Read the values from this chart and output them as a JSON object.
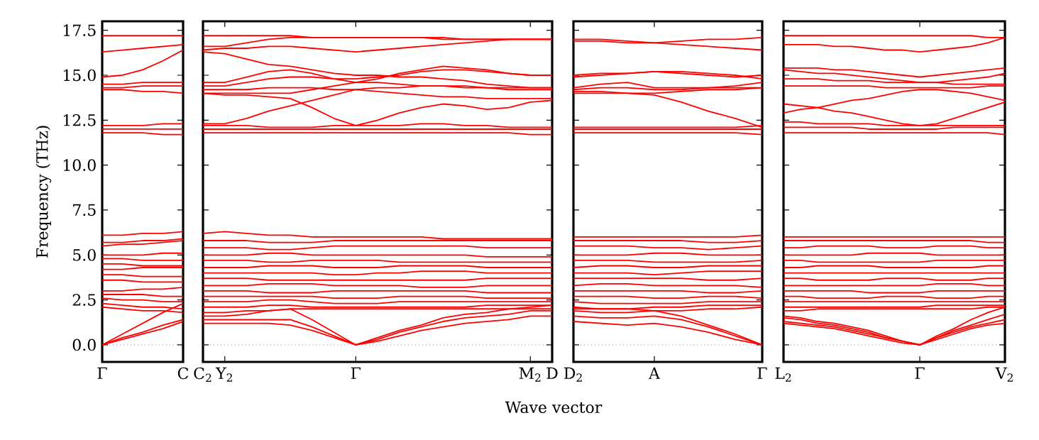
{
  "chart_data": [
    {
      "type": "line",
      "ylabel": "Frequency (THz)",
      "color": "#ff0000",
      "categories": [
        "Γ",
        null,
        null,
        null,
        "C"
      ],
      "ylim": [
        -0.95,
        18.0
      ],
      "yticks": [
        {
          "value": 0,
          "label": "0.0"
        },
        {
          "value": 2.5,
          "label": "2.5"
        },
        {
          "value": 5,
          "label": "5.0"
        },
        {
          "value": 7.5,
          "label": "7.5"
        },
        {
          "value": 10,
          "label": "10.0"
        },
        {
          "value": 12.5,
          "label": "12.5"
        },
        {
          "value": 15,
          "label": "15.0"
        },
        {
          "value": 17.5,
          "label": "17.5"
        }
      ],
      "ref_lines": [
        {
          "axis": "y",
          "value": 0,
          "color": "#7777ee",
          "line_style": "dotted"
        }
      ],
      "series": [
        {
          "values": [
            17.2,
            17.2,
            17.2,
            17.2,
            17.2
          ]
        },
        {
          "values": [
            16.3,
            16.4,
            16.5,
            16.6,
            16.7
          ]
        },
        {
          "values": [
            14.9,
            15.0,
            15.3,
            15.8,
            16.4
          ]
        },
        {
          "values": [
            14.5,
            14.5,
            14.6,
            14.6,
            14.6
          ]
        },
        {
          "values": [
            14.3,
            14.3,
            14.4,
            14.4,
            14.4
          ]
        },
        {
          "values": [
            14.2,
            14.2,
            14.1,
            14.1,
            14.0
          ]
        },
        {
          "values": [
            12.2,
            12.2,
            12.2,
            12.3,
            12.3
          ]
        },
        {
          "values": [
            12.0,
            12.0,
            12.0,
            12.0,
            12.0
          ]
        },
        {
          "values": [
            11.8,
            11.8,
            11.8,
            11.7,
            11.7
          ]
        },
        {
          "values": [
            6.1,
            6.1,
            6.2,
            6.2,
            6.3
          ]
        },
        {
          "values": [
            5.7,
            5.7,
            5.8,
            5.8,
            5.9
          ]
        },
        {
          "values": [
            5.5,
            5.6,
            5.6,
            5.7,
            5.8
          ]
        },
        {
          "values": [
            5.0,
            5.0,
            5.0,
            5.1,
            5.1
          ]
        },
        {
          "values": [
            4.8,
            4.8,
            4.7,
            4.7,
            4.7
          ]
        },
        {
          "values": [
            4.5,
            4.5,
            4.4,
            4.4,
            4.4
          ]
        },
        {
          "values": [
            4.2,
            4.2,
            4.3,
            4.3,
            4.3
          ]
        },
        {
          "values": [
            3.9,
            3.9,
            3.8,
            3.8,
            3.8
          ]
        },
        {
          "values": [
            3.6,
            3.6,
            3.5,
            3.5,
            3.5
          ]
        },
        {
          "values": [
            3.0,
            3.0,
            3.1,
            3.1,
            3.2
          ]
        },
        {
          "values": [
            2.8,
            2.8,
            2.8,
            2.7,
            2.7
          ]
        },
        {
          "values": [
            2.6,
            2.5,
            2.5,
            2.4,
            2.4
          ]
        },
        {
          "values": [
            2.3,
            2.2,
            2.1,
            2.1,
            2.0
          ]
        },
        {
          "values": [
            2.1,
            2.0,
            1.9,
            1.9,
            1.8
          ]
        },
        {
          "values": [
            0,
            0.6,
            1.2,
            1.8,
            2.3
          ]
        },
        {
          "values": [
            0,
            0.4,
            0.7,
            1.1,
            1.4
          ]
        },
        {
          "values": [
            0,
            0.3,
            0.6,
            0.9,
            1.3
          ]
        }
      ]
    },
    {
      "type": "line",
      "xlabel": "Wave vector",
      "tick_labels": "x",
      "color": "#ff0000",
      "categories": [
        "C$_{2}$",
        "Y$_{2}$",
        null,
        null,
        null,
        null,
        null,
        "Γ",
        null,
        null,
        null,
        null,
        null,
        null,
        null,
        "M$_{2}$",
        "D"
      ],
      "ylim": [
        -0.95,
        18.0
      ],
      "yticks": [
        {
          "value": 0,
          "label": null
        },
        {
          "value": 2.5,
          "label": null
        },
        {
          "value": 5,
          "label": null
        },
        {
          "value": 7.5,
          "label": null
        },
        {
          "value": 10,
          "label": null
        },
        {
          "value": 12.5,
          "label": null
        },
        {
          "value": 15,
          "label": null
        },
        {
          "value": 17.5,
          "label": null
        }
      ],
      "ref_lines": [
        {
          "axis": "y",
          "value": 0,
          "color": "#7777ee",
          "line_style": "dotted"
        }
      ],
      "series": [
        {
          "values": [
            17.2,
            17.2,
            17.2,
            17.2,
            17.2,
            17.1,
            17.1,
            17.1,
            17.1,
            17.1,
            17.1,
            17.1,
            17.0,
            17.0,
            17.0,
            17.0,
            17.0
          ]
        },
        {
          "values": [
            16.6,
            16.6,
            16.8,
            17.0,
            17.1,
            17.1,
            17.1,
            17.1,
            17.1,
            17.1,
            17.1,
            17.0,
            17.0,
            17.0,
            17.0,
            17.0,
            17.0
          ]
        },
        {
          "values": [
            16.4,
            16.5,
            16.5,
            16.6,
            16.6,
            16.5,
            16.4,
            16.3,
            16.4,
            16.5,
            16.6,
            16.7,
            16.8,
            16.9,
            17.0,
            17.0,
            17.0
          ]
        },
        {
          "values": [
            16.3,
            16.2,
            15.9,
            15.6,
            15.5,
            15.3,
            15.1,
            15.0,
            15.0,
            14.9,
            14.9,
            14.8,
            14.7,
            14.5,
            14.4,
            14.3,
            14.3
          ]
        },
        {
          "values": [
            14.6,
            14.6,
            14.9,
            15.2,
            15.3,
            15.1,
            14.8,
            14.6,
            14.8,
            15.1,
            15.3,
            15.5,
            15.4,
            15.3,
            15.1,
            15.0,
            15.0
          ]
        },
        {
          "values": [
            14.4,
            14.4,
            14.6,
            14.8,
            14.9,
            14.9,
            14.8,
            14.8,
            14.9,
            15.0,
            15.2,
            15.3,
            15.3,
            15.2,
            15.1,
            15.0,
            15.0
          ]
        },
        {
          "values": [
            14.2,
            14.2,
            14.2,
            14.3,
            14.3,
            14.3,
            14.2,
            14.2,
            14.3,
            14.3,
            14.4,
            14.4,
            14.3,
            14.3,
            14.2,
            14.2,
            14.2
          ]
        },
        {
          "values": [
            14.0,
            14.0,
            14.0,
            14.0,
            14.0,
            14.2,
            14.4,
            14.6,
            14.6,
            14.5,
            14.4,
            14.4,
            14.4,
            14.3,
            14.3,
            14.3,
            14.3
          ]
        },
        {
          "values": [
            14.0,
            13.9,
            13.9,
            13.8,
            13.7,
            13.2,
            12.6,
            12.2,
            12.5,
            12.9,
            13.2,
            13.4,
            13.3,
            13.1,
            13.2,
            13.5,
            13.6
          ]
        },
        {
          "values": [
            12.3,
            12.3,
            12.6,
            13.0,
            13.3,
            13.6,
            13.9,
            14.2,
            14.1,
            14.0,
            13.9,
            13.8,
            13.8,
            13.7,
            13.7,
            13.7,
            13.7
          ]
        },
        {
          "values": [
            12.2,
            12.2,
            12.2,
            12.1,
            12.1,
            12.1,
            12.2,
            12.2,
            12.2,
            12.2,
            12.3,
            12.3,
            12.2,
            12.2,
            12.1,
            12.1,
            12.1
          ]
        },
        {
          "values": [
            12.0,
            12.0,
            12.0,
            12.0,
            12.0,
            12.0,
            12.0,
            12.0,
            12.0,
            12.0,
            12.0,
            12.0,
            12.0,
            12.0,
            12.0,
            12.0,
            12.0
          ]
        },
        {
          "values": [
            11.8,
            11.8,
            11.8,
            11.8,
            11.8,
            11.8,
            11.8,
            11.8,
            11.8,
            11.8,
            11.8,
            11.8,
            11.8,
            11.8,
            11.8,
            11.7,
            11.7
          ]
        },
        {
          "values": [
            6.2,
            6.3,
            6.2,
            6.1,
            6.1,
            6.0,
            6.0,
            6.0,
            6.0,
            6.0,
            6.0,
            5.9,
            5.9,
            5.9,
            5.9,
            5.9,
            5.9
          ]
        },
        {
          "values": [
            5.8,
            5.8,
            5.8,
            5.7,
            5.7,
            5.7,
            5.8,
            5.8,
            5.8,
            5.8,
            5.8,
            5.8,
            5.8,
            5.8,
            5.8,
            5.8,
            5.8
          ]
        },
        {
          "values": [
            5.4,
            5.4,
            5.4,
            5.3,
            5.3,
            5.4,
            5.5,
            5.5,
            5.5,
            5.5,
            5.5,
            5.5,
            5.5,
            5.4,
            5.4,
            5.4,
            5.4
          ]
        },
        {
          "values": [
            5.0,
            5.0,
            5.0,
            5.1,
            5.1,
            5.0,
            5.0,
            5.0,
            5.0,
            5.0,
            5.0,
            5.0,
            5.0,
            4.9,
            4.9,
            4.9,
            4.9
          ]
        },
        {
          "values": [
            4.7,
            4.7,
            4.7,
            4.6,
            4.6,
            4.7,
            4.7,
            4.7,
            4.7,
            4.6,
            4.6,
            4.6,
            4.6,
            4.6,
            4.6,
            4.6,
            4.6
          ]
        },
        {
          "values": [
            4.3,
            4.3,
            4.3,
            4.4,
            4.4,
            4.4,
            4.3,
            4.3,
            4.3,
            4.4,
            4.4,
            4.4,
            4.4,
            4.3,
            4.3,
            4.3,
            4.3
          ]
        },
        {
          "values": [
            4.0,
            4.0,
            4.0,
            4.0,
            4.0,
            4.0,
            3.9,
            3.9,
            4.0,
            4.0,
            4.1,
            4.1,
            4.1,
            4.0,
            4.0,
            4.0,
            4.0
          ]
        },
        {
          "values": [
            3.7,
            3.7,
            3.7,
            3.6,
            3.6,
            3.6,
            3.6,
            3.6,
            3.6,
            3.6,
            3.6,
            3.6,
            3.6,
            3.7,
            3.7,
            3.7,
            3.7
          ]
        },
        {
          "values": [
            3.3,
            3.3,
            3.3,
            3.4,
            3.4,
            3.4,
            3.3,
            3.3,
            3.3,
            3.3,
            3.2,
            3.2,
            3.2,
            3.3,
            3.3,
            3.3,
            3.3
          ]
        },
        {
          "values": [
            3.0,
            3.0,
            3.0,
            2.9,
            2.9,
            2.9,
            3.0,
            3.0,
            3.0,
            3.0,
            3.0,
            3.0,
            3.0,
            2.9,
            2.9,
            2.9,
            2.9
          ]
        },
        {
          "values": [
            2.7,
            2.7,
            2.7,
            2.7,
            2.7,
            2.7,
            2.6,
            2.6,
            2.6,
            2.7,
            2.7,
            2.7,
            2.7,
            2.6,
            2.6,
            2.6,
            2.6
          ]
        },
        {
          "values": [
            2.4,
            2.4,
            2.4,
            2.5,
            2.5,
            2.4,
            2.3,
            2.3,
            2.3,
            2.4,
            2.4,
            2.4,
            2.4,
            2.4,
            2.4,
            2.4,
            2.4
          ]
        },
        {
          "values": [
            2.1,
            2.1,
            2.1,
            2.2,
            2.2,
            2.1,
            2.1,
            2.1,
            2.1,
            2.1,
            2.1,
            2.1,
            2.1,
            2.2,
            2.2,
            2.2,
            2.2
          ]
        },
        {
          "values": [
            1.8,
            1.8,
            1.9,
            1.9,
            2.0,
            2.0,
            2.0,
            2.0,
            2.0,
            2.0,
            2.0,
            2.0,
            2.0,
            2.0,
            2.0,
            2.0,
            2.0
          ]
        },
        {
          "values": [
            1.6,
            1.6,
            1.7,
            1.9,
            2.0,
            1.4,
            0.7,
            0,
            0.4,
            0.8,
            1.1,
            1.5,
            1.7,
            1.8,
            2.0,
            2.1,
            2.2
          ]
        },
        {
          "values": [
            1.4,
            1.4,
            1.4,
            1.4,
            1.4,
            1.0,
            0.5,
            0,
            0.3,
            0.7,
            1.0,
            1.3,
            1.5,
            1.6,
            1.7,
            1.9,
            1.9
          ]
        },
        {
          "values": [
            1.2,
            1.2,
            1.2,
            1.2,
            1.1,
            0.8,
            0.4,
            0,
            0.2,
            0.5,
            0.8,
            1.0,
            1.2,
            1.3,
            1.4,
            1.6,
            1.6
          ]
        }
      ]
    },
    {
      "type": "line",
      "tick_labels": "x",
      "color": "#ff0000",
      "categories": [
        "D$_{2}$",
        null,
        null,
        "A",
        null,
        null,
        null,
        "Γ"
      ],
      "ylim": [
        -0.95,
        18.0
      ],
      "yticks": [
        {
          "value": 0,
          "label": null
        },
        {
          "value": 2.5,
          "label": null
        },
        {
          "value": 5,
          "label": null
        },
        {
          "value": 7.5,
          "label": null
        },
        {
          "value": 10,
          "label": null
        },
        {
          "value": 12.5,
          "label": null
        },
        {
          "value": 15,
          "label": null
        },
        {
          "value": 17.5,
          "label": null
        }
      ],
      "ref_lines": [
        {
          "axis": "y",
          "value": 0,
          "color": "#7777ee",
          "line_style": "dotted"
        }
      ],
      "series": [
        {
          "values": [
            17.0,
            17.0,
            16.9,
            16.8,
            16.9,
            17.0,
            17.0,
            17.1
          ]
        },
        {
          "values": [
            16.9,
            16.9,
            16.8,
            16.8,
            16.7,
            16.6,
            16.5,
            16.4
          ]
        },
        {
          "values": [
            15.0,
            15.1,
            15.1,
            15.2,
            15.2,
            15.1,
            15.0,
            14.8
          ]
        },
        {
          "values": [
            14.9,
            15.0,
            15.1,
            15.2,
            15.1,
            15.0,
            14.9,
            15.0
          ]
        },
        {
          "values": [
            14.3,
            14.5,
            14.6,
            14.3,
            14.3,
            14.3,
            14.4,
            14.6
          ]
        },
        {
          "values": [
            14.2,
            14.3,
            14.3,
            14.2,
            14.2,
            14.3,
            14.3,
            14.3
          ]
        },
        {
          "values": [
            14.0,
            14.0,
            14.0,
            14.0,
            14.1,
            14.2,
            14.2,
            14.3
          ]
        },
        {
          "values": [
            14.1,
            14.1,
            14.0,
            13.9,
            13.5,
            13.0,
            12.6,
            12.1
          ]
        },
        {
          "values": [
            12.1,
            12.1,
            12.1,
            12.1,
            12.1,
            12.1,
            12.1,
            12.2
          ]
        },
        {
          "values": [
            12.0,
            12.0,
            12.0,
            12.0,
            12.0,
            12.0,
            12.0,
            12.0
          ]
        },
        {
          "values": [
            11.8,
            11.8,
            11.8,
            11.8,
            11.8,
            11.8,
            11.8,
            11.7
          ]
        },
        {
          "values": [
            6.0,
            6.0,
            6.0,
            6.0,
            6.0,
            6.0,
            6.0,
            6.1
          ]
        },
        {
          "values": [
            5.8,
            5.8,
            5.8,
            5.8,
            5.8,
            5.7,
            5.7,
            5.8
          ]
        },
        {
          "values": [
            5.5,
            5.5,
            5.5,
            5.4,
            5.4,
            5.3,
            5.4,
            5.5
          ]
        },
        {
          "values": [
            5.0,
            5.0,
            5.0,
            5.1,
            5.1,
            5.0,
            5.0,
            5.0
          ]
        },
        {
          "values": [
            4.7,
            4.7,
            4.7,
            4.6,
            4.6,
            4.6,
            4.6,
            4.7
          ]
        },
        {
          "values": [
            4.3,
            4.4,
            4.4,
            4.3,
            4.3,
            4.4,
            4.4,
            4.4
          ]
        },
        {
          "values": [
            4.0,
            4.0,
            4.0,
            3.9,
            4.0,
            4.1,
            4.1,
            4.1
          ]
        },
        {
          "values": [
            3.7,
            3.7,
            3.7,
            3.7,
            3.7,
            3.6,
            3.6,
            3.7
          ]
        },
        {
          "values": [
            3.3,
            3.4,
            3.4,
            3.3,
            3.3,
            3.3,
            3.3,
            3.2
          ]
        },
        {
          "values": [
            3.0,
            3.0,
            3.0,
            3.0,
            3.0,
            2.9,
            2.9,
            3.0
          ]
        },
        {
          "values": [
            2.7,
            2.7,
            2.7,
            2.6,
            2.6,
            2.7,
            2.7,
            2.6
          ]
        },
        {
          "values": [
            2.4,
            2.3,
            2.3,
            2.3,
            2.3,
            2.4,
            2.4,
            2.4
          ]
        },
        {
          "values": [
            2.1,
            2.0,
            2.0,
            2.1,
            2.1,
            2.2,
            2.2,
            2.2
          ]
        },
        {
          "values": [
            1.9,
            1.8,
            1.8,
            1.9,
            1.9,
            2.0,
            2.0,
            2.1
          ]
        },
        {
          "values": [
            2.0,
            2.0,
            2.0,
            1.9,
            1.6,
            1.1,
            0.6,
            0
          ]
        },
        {
          "values": [
            1.6,
            1.5,
            1.5,
            1.6,
            1.4,
            1.0,
            0.5,
            0
          ]
        },
        {
          "values": [
            1.3,
            1.2,
            1.1,
            1.2,
            1.0,
            0.7,
            0.3,
            0
          ]
        }
      ]
    },
    {
      "type": "line",
      "tick_labels": "x",
      "color": "#ff0000",
      "categories": [
        "L$_{2}$",
        null,
        null,
        null,
        null,
        null,
        null,
        null,
        "Γ",
        null,
        null,
        null,
        null,
        "V$_{2}$"
      ],
      "ylim": [
        -0.95,
        18.0
      ],
      "yticks": [
        {
          "value": 0,
          "label": null
        },
        {
          "value": 2.5,
          "label": null
        },
        {
          "value": 5,
          "label": null
        },
        {
          "value": 7.5,
          "label": null
        },
        {
          "value": 10,
          "label": null
        },
        {
          "value": 12.5,
          "label": null
        },
        {
          "value": 15,
          "label": null
        },
        {
          "value": 17.5,
          "label": null
        }
      ],
      "ref_lines": [
        {
          "axis": "y",
          "value": 0,
          "color": "#7777ee",
          "line_style": "dotted"
        }
      ],
      "series": [
        {
          "values": [
            17.2,
            17.2,
            17.2,
            17.2,
            17.2,
            17.2,
            17.2,
            17.2,
            17.2,
            17.2,
            17.2,
            17.2,
            17.1,
            17.1
          ]
        },
        {
          "values": [
            16.7,
            16.7,
            16.7,
            16.6,
            16.6,
            16.5,
            16.4,
            16.4,
            16.3,
            16.4,
            16.5,
            16.6,
            16.8,
            17.1
          ]
        },
        {
          "values": [
            15.4,
            15.4,
            15.4,
            15.3,
            15.3,
            15.2,
            15.1,
            15.0,
            14.9,
            15.0,
            15.1,
            15.2,
            15.3,
            15.4
          ]
        },
        {
          "values": [
            15.3,
            15.2,
            15.1,
            15.1,
            15.0,
            14.9,
            14.8,
            14.7,
            14.6,
            14.6,
            14.7,
            14.8,
            14.9,
            15.1
          ]
        },
        {
          "values": [
            14.8,
            14.8,
            14.8,
            14.7,
            14.7,
            14.7,
            14.6,
            14.6,
            14.6,
            14.6,
            14.5,
            14.5,
            14.5,
            14.5
          ]
        },
        {
          "values": [
            14.4,
            14.4,
            14.4,
            14.4,
            14.4,
            14.4,
            14.3,
            14.3,
            14.3,
            14.3,
            14.3,
            14.3,
            14.4,
            14.4
          ]
        },
        {
          "values": [
            12.9,
            13.1,
            13.2,
            13.4,
            13.6,
            13.7,
            13.9,
            14.1,
            14.2,
            14.2,
            14.1,
            14.0,
            13.8,
            13.6
          ]
        },
        {
          "values": [
            13.4,
            13.3,
            13.2,
            13.0,
            12.9,
            12.7,
            12.5,
            12.3,
            12.2,
            12.3,
            12.6,
            12.9,
            13.2,
            13.5
          ]
        },
        {
          "values": [
            12.4,
            12.4,
            12.3,
            12.3,
            12.3,
            12.3,
            12.2,
            12.2,
            12.2,
            12.2,
            12.2,
            12.2,
            12.2,
            12.2
          ]
        },
        {
          "values": [
            12.1,
            12.1,
            12.1,
            12.1,
            12.1,
            12.0,
            12.0,
            12.0,
            12.0,
            12.0,
            12.1,
            12.1,
            12.1,
            12.1
          ]
        },
        {
          "values": [
            11.8,
            11.8,
            11.8,
            11.8,
            11.8,
            11.8,
            11.8,
            11.8,
            11.8,
            11.8,
            11.8,
            11.8,
            11.8,
            11.7
          ]
        },
        {
          "values": [
            6.0,
            6.0,
            6.0,
            6.0,
            6.0,
            6.0,
            6.0,
            6.0,
            6.0,
            6.0,
            6.0,
            6.0,
            6.0,
            6.0
          ]
        },
        {
          "values": [
            5.8,
            5.8,
            5.8,
            5.8,
            5.8,
            5.8,
            5.8,
            5.8,
            5.8,
            5.8,
            5.8,
            5.8,
            5.7,
            5.7
          ]
        },
        {
          "values": [
            5.4,
            5.4,
            5.5,
            5.5,
            5.5,
            5.5,
            5.4,
            5.4,
            5.4,
            5.5,
            5.5,
            5.5,
            5.4,
            5.4
          ]
        },
        {
          "values": [
            5.0,
            5.0,
            5.0,
            5.0,
            5.0,
            5.1,
            5.1,
            5.1,
            5.1,
            5.0,
            5.0,
            5.0,
            5.0,
            5.0
          ]
        },
        {
          "values": [
            4.7,
            4.7,
            4.6,
            4.6,
            4.6,
            4.6,
            4.6,
            4.6,
            4.6,
            4.7,
            4.7,
            4.7,
            4.7,
            4.7
          ]
        },
        {
          "values": [
            4.3,
            4.3,
            4.4,
            4.4,
            4.4,
            4.4,
            4.3,
            4.3,
            4.3,
            4.3,
            4.3,
            4.3,
            4.4,
            4.4
          ]
        },
        {
          "values": [
            4.0,
            4.0,
            4.0,
            4.0,
            4.0,
            4.0,
            4.0,
            4.0,
            4.0,
            4.0,
            4.0,
            4.0,
            4.0,
            4.0
          ]
        },
        {
          "values": [
            3.7,
            3.7,
            3.6,
            3.6,
            3.6,
            3.6,
            3.7,
            3.7,
            3.7,
            3.6,
            3.6,
            3.6,
            3.7,
            3.7
          ]
        },
        {
          "values": [
            3.3,
            3.3,
            3.3,
            3.3,
            3.3,
            3.3,
            3.3,
            3.3,
            3.3,
            3.4,
            3.4,
            3.4,
            3.3,
            3.3
          ]
        },
        {
          "values": [
            3.0,
            3.0,
            3.0,
            3.0,
            3.0,
            2.9,
            2.9,
            2.9,
            2.9,
            3.0,
            3.0,
            3.0,
            3.0,
            3.0
          ]
        },
        {
          "values": [
            2.7,
            2.7,
            2.6,
            2.6,
            2.6,
            2.6,
            2.7,
            2.7,
            2.7,
            2.6,
            2.6,
            2.6,
            2.7,
            2.7
          ]
        },
        {
          "values": [
            2.4,
            2.4,
            2.4,
            2.4,
            2.4,
            2.4,
            2.4,
            2.4,
            2.4,
            2.4,
            2.4,
            2.4,
            2.4,
            2.4
          ]
        },
        {
          "values": [
            2.1,
            2.1,
            2.1,
            2.1,
            2.1,
            2.1,
            2.1,
            2.1,
            2.1,
            2.2,
            2.2,
            2.2,
            2.2,
            2.2
          ]
        },
        {
          "values": [
            1.9,
            1.9,
            2.0,
            2.0,
            2.0,
            2.0,
            2.0,
            2.0,
            2.0,
            2.0,
            2.0,
            2.0,
            2.1,
            2.1
          ]
        },
        {
          "values": [
            1.6,
            1.5,
            1.3,
            1.2,
            1.0,
            0.8,
            0.5,
            0.2,
            0,
            0.5,
            0.9,
            1.4,
            1.8,
            2.1
          ]
        },
        {
          "values": [
            1.5,
            1.4,
            1.2,
            1.1,
            0.9,
            0.7,
            0.4,
            0.2,
            0,
            0.4,
            0.8,
            1.1,
            1.4,
            1.7
          ]
        },
        {
          "values": [
            1.3,
            1.2,
            1.1,
            1.0,
            0.8,
            0.6,
            0.4,
            0.2,
            0,
            0.4,
            0.7,
            1.0,
            1.2,
            1.4
          ]
        },
        {
          "values": [
            1.2,
            1.1,
            1.0,
            0.9,
            0.7,
            0.5,
            0.3,
            0.1,
            0,
            0.3,
            0.6,
            0.9,
            1.1,
            1.2
          ]
        }
      ]
    }
  ]
}
